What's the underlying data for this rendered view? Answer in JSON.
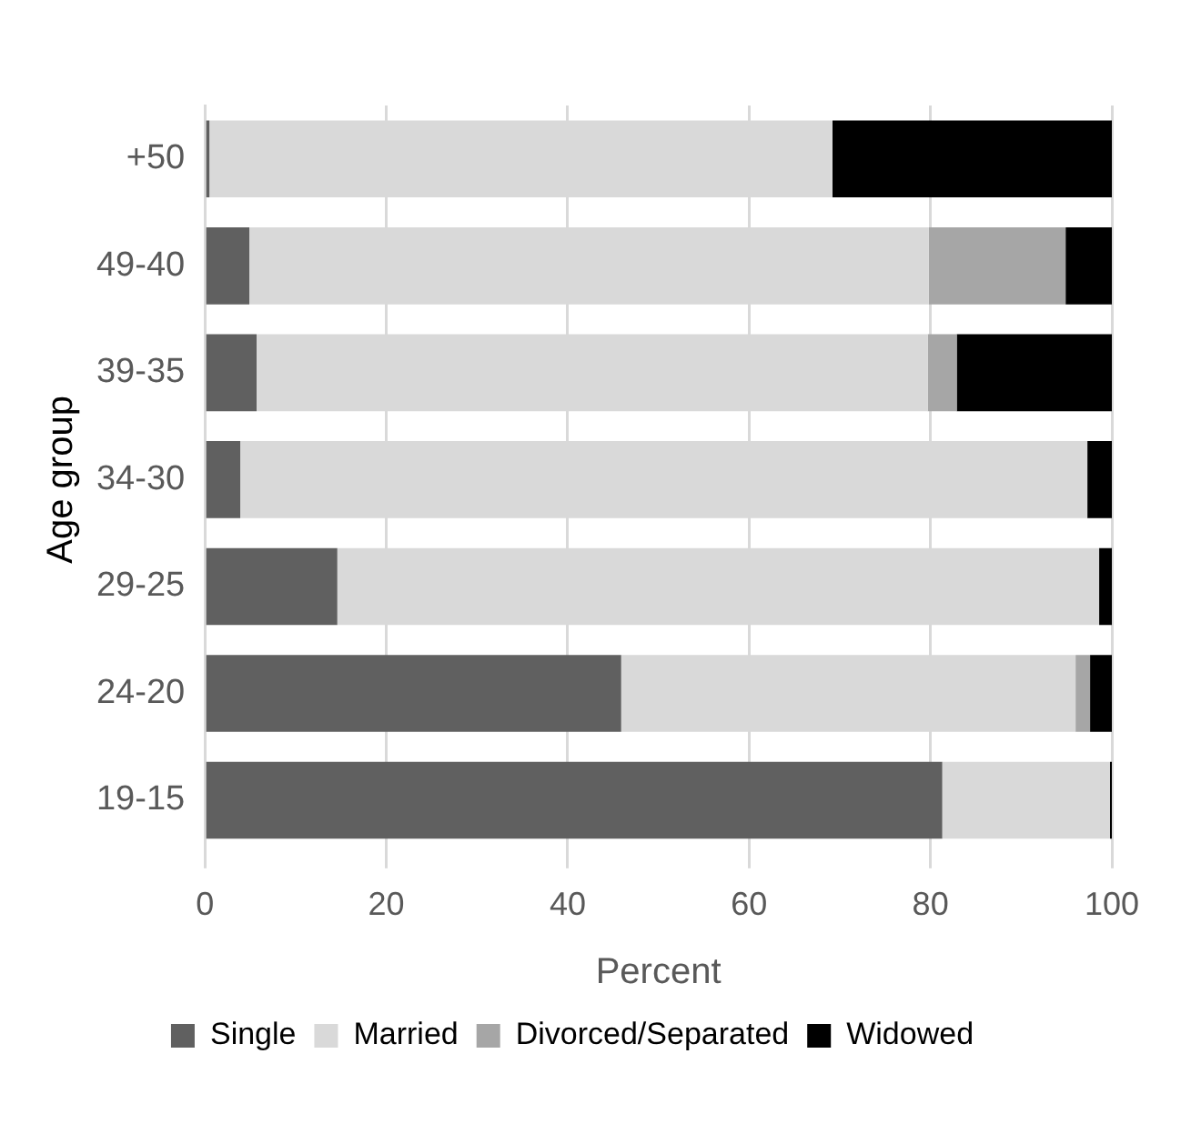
{
  "chart_data": {
    "type": "bar",
    "orientation": "horizontal",
    "stacked": true,
    "xlabel": "Percent",
    "ylabel": "Age group",
    "categories": [
      "+50",
      "49-40",
      "39-35",
      "34-30",
      "29-25",
      "24-20",
      "19-15"
    ],
    "series": [
      {
        "name": "Single",
        "color": "#606060",
        "values": [
          0.5,
          4.9,
          5.7,
          3.9,
          14.6,
          45.9,
          81.3
        ]
      },
      {
        "name": "Married",
        "color": "#d9d9d9",
        "values": [
          68.7,
          74.9,
          74,
          93.4,
          84,
          50.1,
          18.5
        ]
      },
      {
        "name": "Divorced/Separated",
        "color": "#a6a6a6",
        "values": [
          0,
          15.1,
          3.2,
          null,
          0,
          1.6,
          0
        ]
      },
      {
        "name": "Widowed",
        "color": "#000000",
        "values": [
          30.8,
          5.1,
          17.1,
          2.7,
          1.4,
          2.4,
          0.2
        ]
      }
    ],
    "xlim": [
      0,
      100
    ],
    "xticks": [
      0,
      20,
      40,
      60,
      80,
      100
    ],
    "grid": "x",
    "legend": "bottom"
  }
}
